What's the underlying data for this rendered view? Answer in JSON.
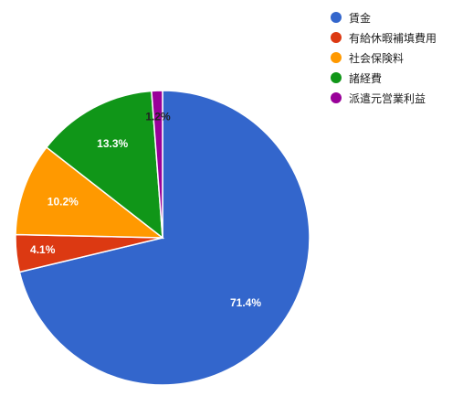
{
  "chart_data": {
    "type": "pie",
    "title": "",
    "categories": [
      "賃金",
      "有給休暇補填費用",
      "社会保険料",
      "諸経費",
      "派遣元営業利益"
    ],
    "values": [
      71.4,
      4.1,
      10.2,
      13.3,
      1.2
    ],
    "labels": [
      "71.4%",
      "4.1%",
      "10.2%",
      "13.3%",
      "1.2%"
    ],
    "colors": [
      "#3366cc",
      "#dc3912",
      "#ff9900",
      "#109618",
      "#990099"
    ],
    "label_colors": [
      "#ffffff",
      "#ffffff",
      "#ffffff",
      "#ffffff",
      "#222222"
    ],
    "legend_position": "right"
  }
}
